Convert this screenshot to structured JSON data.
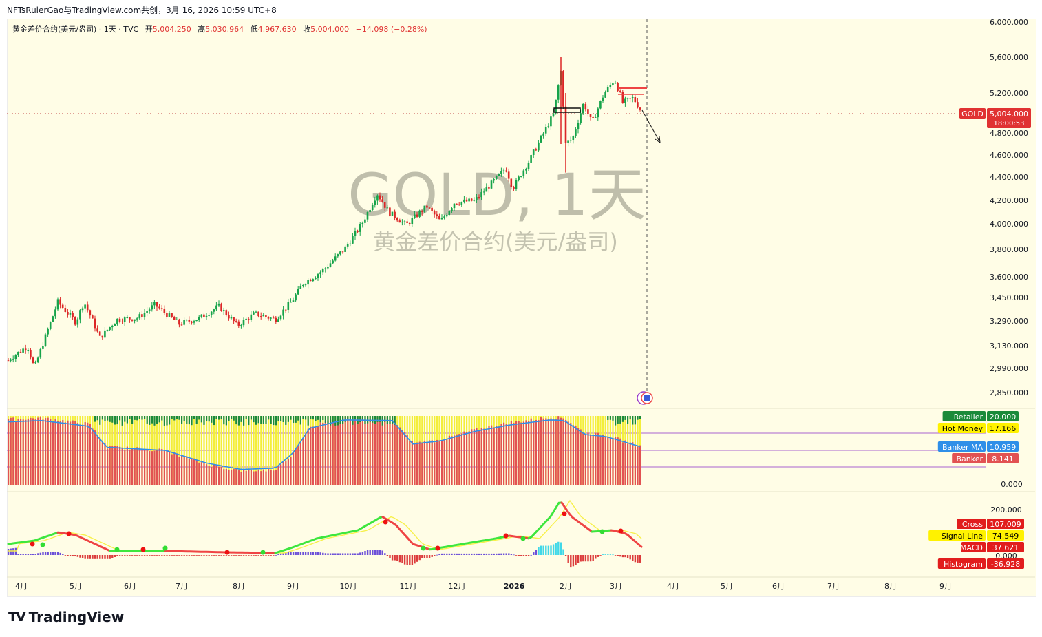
{
  "header": {
    "text": "NFTsRulerGao与TradingView.com共创，3月 16, 2026 10:59 UTC+8"
  },
  "legend": {
    "symbol": "黄金差价合约(美元/盎司) · 1天 · TVC",
    "open_label": "开",
    "open": "5,004.250",
    "high_label": "高",
    "high": "5,030.964",
    "low_label": "低",
    "low": "4,967.630",
    "close_label": "收",
    "close": "5,004.000",
    "change": "−14.098 (−0.28%)"
  },
  "watermark": {
    "line1": "GOLD, 1天",
    "line2": "黄金差价合约(美元/盎司)"
  },
  "price_axis": {
    "ticks": [
      "6,000.000",
      "5,600.000",
      "5,200.000",
      "4,800.000",
      "4,600.000",
      "4,400.000",
      "4,200.000",
      "4,000.000",
      "3,800.000",
      "3,600.000",
      "3,450.000",
      "3,290.000",
      "3,130.000",
      "2,990.000",
      "2,850.000"
    ]
  },
  "price_badge": {
    "symbol": "GOLD",
    "price": "5,004.000",
    "countdown": "18:00:53"
  },
  "indicator1": {
    "zero_label": "0.000",
    "labels": [
      {
        "name": "Retailer",
        "value": "20.000",
        "color": "#1b8a3a"
      },
      {
        "name": "Hot Money",
        "value": "17.166",
        "color": "#fff200"
      },
      {
        "name": "Banker MA",
        "value": "10.959",
        "color": "#2f8fe8"
      },
      {
        "name": "Banker",
        "value": "8.141",
        "color": "#e25252"
      }
    ]
  },
  "indicator2": {
    "top_label": "200.000",
    "zero_label": "0.000",
    "labels": [
      {
        "name": "Cross",
        "value": "107.009",
        "color": "#e11d1d"
      },
      {
        "name": "Signal Line",
        "value": "74.549",
        "color": "#fff200"
      },
      {
        "name": "MACD",
        "value": "37.621",
        "color": "#e11d1d"
      },
      {
        "name": "Histogram",
        "value": "-36.928",
        "color": "#e11d1d"
      }
    ]
  },
  "time_axis": {
    "labels": [
      "4月",
      "5月",
      "6月",
      "7月",
      "8月",
      "9月",
      "10月",
      "11月",
      "12月",
      "2026",
      "2月",
      "3月",
      "4月",
      "5月",
      "6月",
      "7月",
      "8月",
      "9月"
    ]
  },
  "chart_data": {
    "type": "candlestick",
    "symbol": "GOLD",
    "interval": "1天",
    "y_axis_ticks": [
      6000,
      5600,
      5200,
      4800,
      4600,
      4400,
      4200,
      4000,
      3800,
      3600,
      3450,
      3290,
      3130,
      2990,
      2850
    ],
    "last_price": 5004.0,
    "monthly_closes": [
      {
        "x": "4月",
        "close": 3120
      },
      {
        "x": "5月",
        "close": 3290
      },
      {
        "x": "6月",
        "close": 3350
      },
      {
        "x": "7月",
        "close": 3320
      },
      {
        "x": "8月",
        "close": 3360
      },
      {
        "x": "9月",
        "close": 3480
      },
      {
        "x": "10月",
        "close": 4000
      },
      {
        "x": "11月",
        "close": 4080
      },
      {
        "x": "12月",
        "close": 4200
      },
      {
        "x": "2026",
        "close": 4550
      },
      {
        "x": "2月",
        "close": 4900
      },
      {
        "x": "3月",
        "close": 5004
      }
    ],
    "indicator_banker_ma_last": 10.959,
    "macd_last": 37.621
  },
  "branding": {
    "name": "TradingView"
  }
}
